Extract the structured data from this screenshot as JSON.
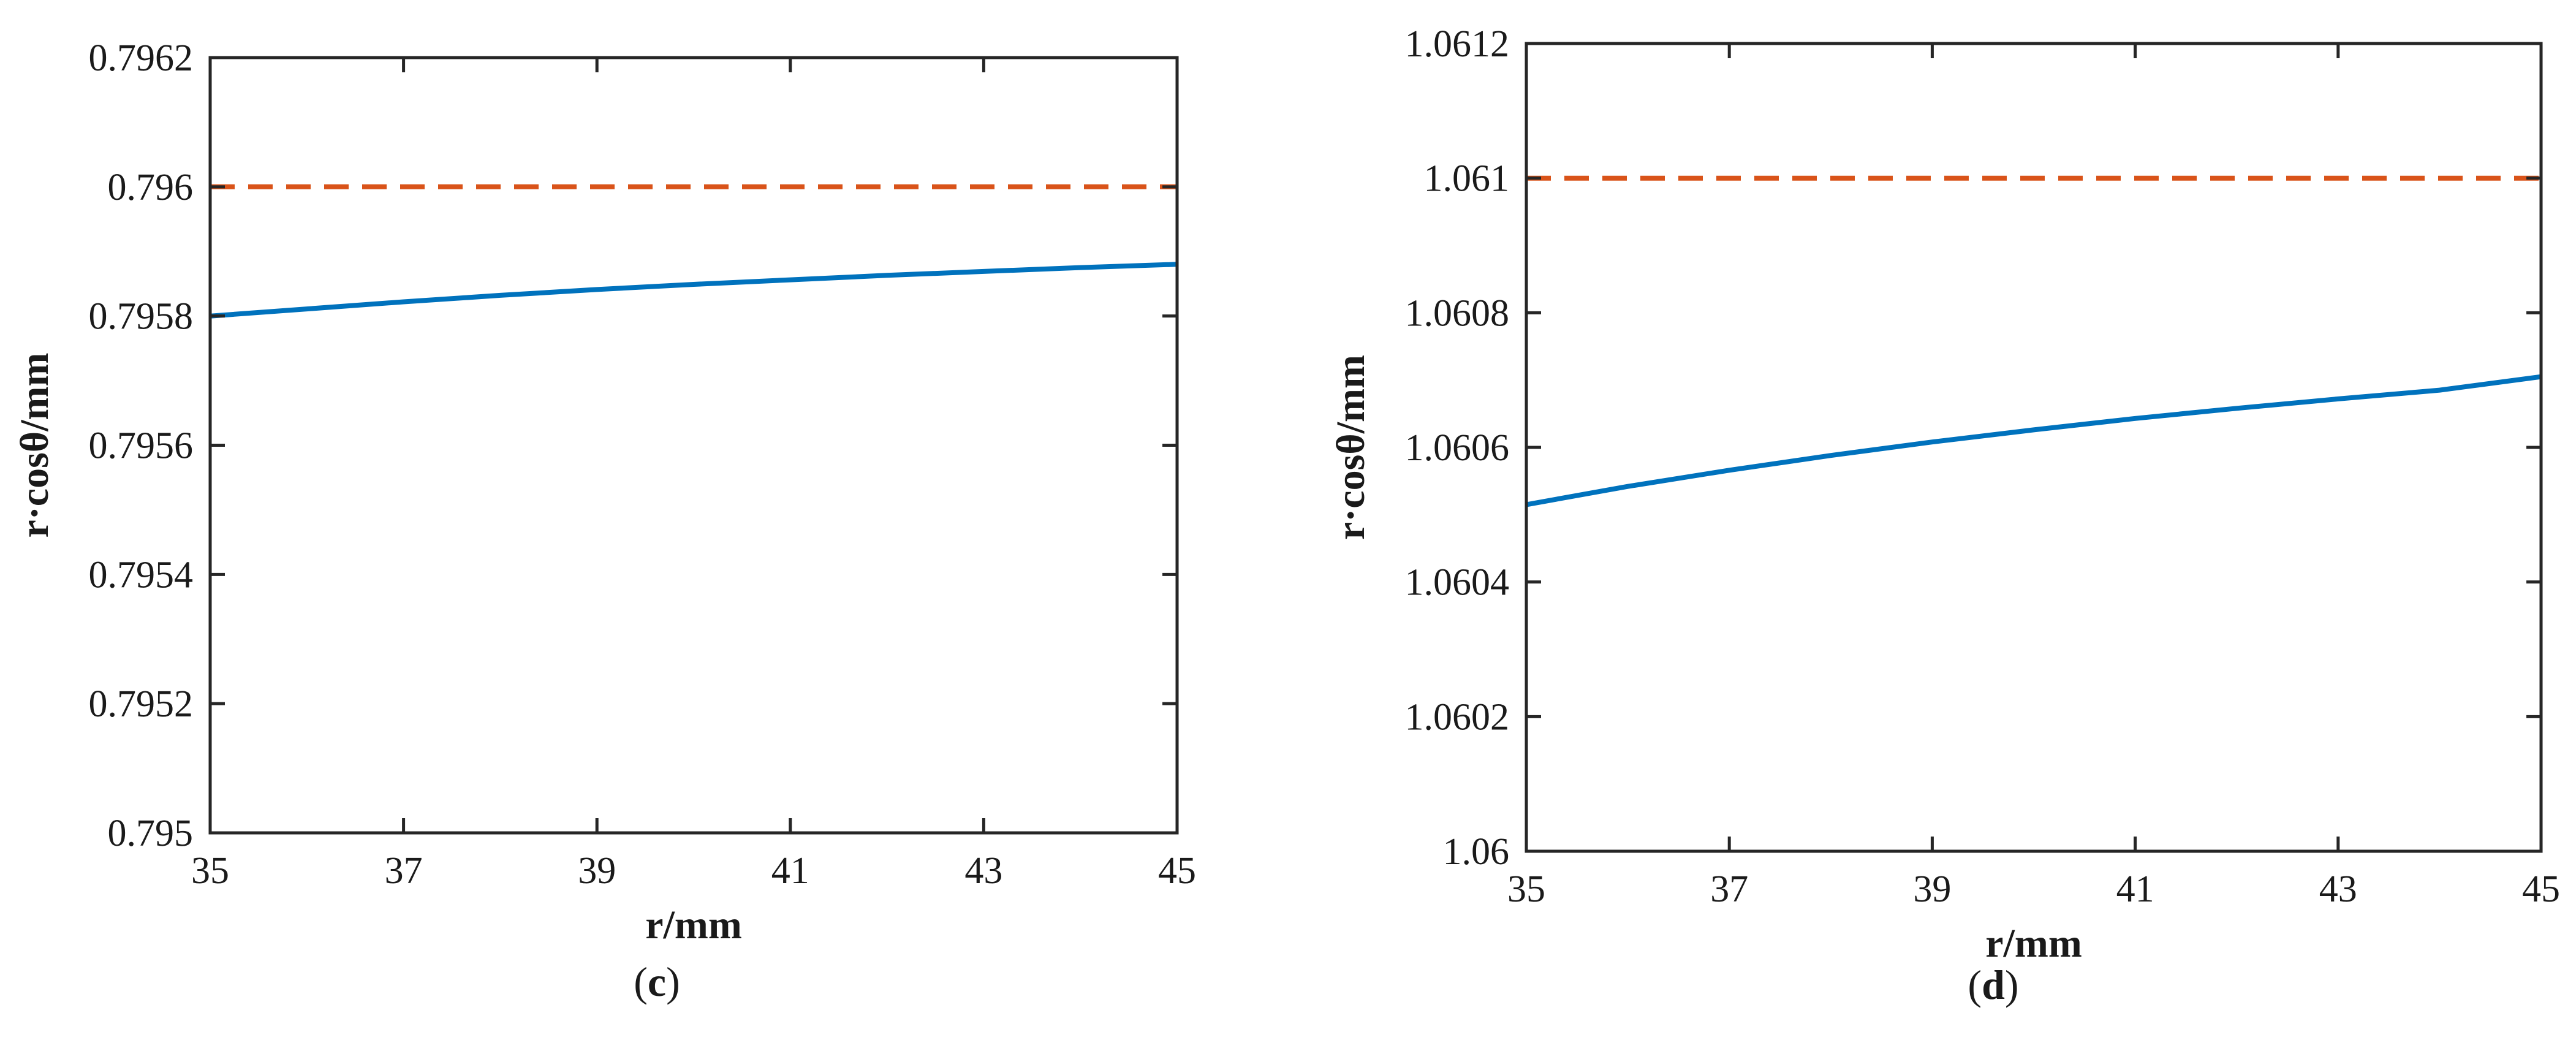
{
  "chart_data": [
    {
      "type": "line",
      "panel_label": "c",
      "xlabel": "r/mm",
      "ylabel": "r·cosθ/mm",
      "xlim": [
        35,
        45
      ],
      "ylim": [
        0.795,
        0.7962
      ],
      "xticks": [
        35,
        37,
        39,
        41,
        43,
        45
      ],
      "xtick_labels": [
        "35",
        "37",
        "39",
        "41",
        "43",
        "45"
      ],
      "yticks": [
        0.795,
        0.7952,
        0.7954,
        0.7956,
        0.7958,
        0.796,
        0.7962
      ],
      "ytick_labels": [
        "0.795",
        "0.7952",
        "0.7954",
        "0.7956",
        "0.7958",
        "0.796",
        "0.7962"
      ],
      "grid": false,
      "series": [
        {
          "style": "solid",
          "color": "#0072BD",
          "x": [
            35,
            36,
            37,
            38,
            39,
            40,
            41,
            42,
            43,
            44,
            45
          ],
          "y": [
            0.7958,
            0.795811,
            0.795822,
            0.795832,
            0.795841,
            0.795849,
            0.795856,
            0.795863,
            0.795869,
            0.795875,
            0.79588
          ]
        },
        {
          "style": "dashed",
          "color": "#D95319",
          "x": [
            35,
            45
          ],
          "y": [
            0.796,
            0.796
          ]
        }
      ]
    },
    {
      "type": "line",
      "panel_label": "d",
      "xlabel": "r/mm",
      "ylabel": "r·cosθ/mm",
      "xlim": [
        35,
        45
      ],
      "ylim": [
        1.06,
        1.0612
      ],
      "xticks": [
        35,
        37,
        39,
        41,
        43,
        45
      ],
      "xtick_labels": [
        "35",
        "37",
        "39",
        "41",
        "43",
        "45"
      ],
      "yticks": [
        1.06,
        1.0602,
        1.0604,
        1.0606,
        1.0608,
        1.061,
        1.0612
      ],
      "ytick_labels": [
        "1.06",
        "1.0602",
        "1.0604",
        "1.0606",
        "1.0608",
        "1.061",
        "1.0612"
      ],
      "grid": false,
      "series": [
        {
          "style": "solid",
          "color": "#0072BD",
          "x": [
            35,
            36,
            37,
            38,
            39,
            40,
            41,
            42,
            43,
            44,
            45
          ],
          "y": [
            1.060515,
            1.060542,
            1.060566,
            1.060588,
            1.060608,
            1.060626,
            1.060643,
            1.060658,
            1.060672,
            1.060685,
            1.060705
          ]
        },
        {
          "style": "dashed",
          "color": "#D95319",
          "x": [
            35,
            45
          ],
          "y": [
            1.061,
            1.061
          ]
        }
      ]
    }
  ]
}
